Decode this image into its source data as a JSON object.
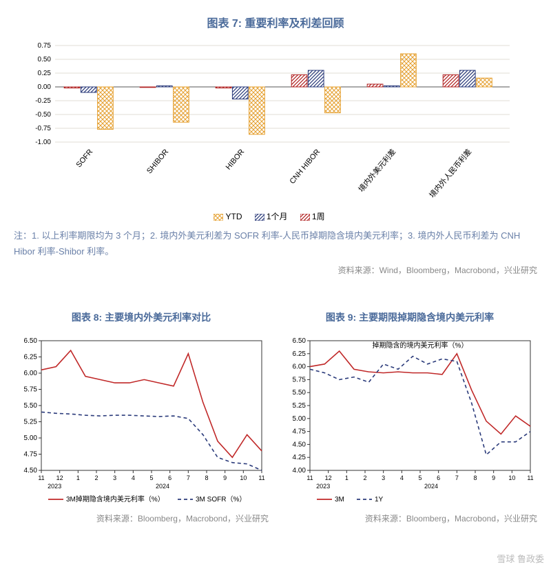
{
  "chart7": {
    "title": "图表 7: 重要利率及利差回顾",
    "type": "bar",
    "categories": [
      "SOFR",
      "SHIBOR",
      "HIBOR",
      "CNH HIBOR",
      "境内外美元利差",
      "境内外人民币利差"
    ],
    "series": [
      {
        "name": "YTD",
        "color": "#f0b84a",
        "values": [
          -0.77,
          -0.64,
          -0.86,
          -0.47,
          0.6,
          0.16
        ]
      },
      {
        "name": "1个月",
        "color": "#2a3a7a",
        "values": [
          -0.1,
          0.02,
          -0.22,
          0.3,
          0.02,
          0.3
        ]
      },
      {
        "name": "1周",
        "color": "#c02828",
        "values": [
          -0.02,
          -0.01,
          -0.02,
          0.22,
          0.05,
          0.22
        ]
      }
    ],
    "ylim": [
      -1.0,
      0.75
    ],
    "ytick_step": 0.25,
    "grid_color": "#d8d0c8",
    "axis_color": "#333",
    "title_fontsize": 16,
    "label_fontsize": 11,
    "pattern": "crosshatch",
    "bar_width": 0.22,
    "notes": "注：1. 以上利率期限均为 3 个月；2. 境内外美元利差为 SOFR 利率-人民币掉期隐含境内美元利率；3. 境内外人民币利差为 CNH Hibor 利率-Shibor 利率。",
    "source": "资料来源：Wind，Bloomberg，Macrobond，兴业研究"
  },
  "chart8": {
    "title": "图表 8: 主要境内外美元利率对比",
    "type": "line",
    "xlabels": [
      "11",
      "12",
      "1",
      "2",
      "3",
      "4",
      "5",
      "6",
      "7",
      "8",
      "9",
      "10",
      "11"
    ],
    "year_left": "2023",
    "year_right": "2024",
    "ylim": [
      4.5,
      6.5
    ],
    "ytick_step": 0.25,
    "series": [
      {
        "name": "3M掉期隐含境内美元利率（%）",
        "color": "#c02828",
        "dash": "solid",
        "y": [
          6.05,
          6.1,
          6.35,
          5.95,
          5.9,
          5.85,
          5.85,
          5.9,
          5.85,
          5.8,
          6.3,
          5.55,
          4.95,
          4.7,
          5.05,
          4.8
        ]
      },
      {
        "name": "3M SOFR（%）",
        "color": "#2a3a7a",
        "dash": "dash",
        "y": [
          5.4,
          5.38,
          5.37,
          5.35,
          5.34,
          5.35,
          5.35,
          5.34,
          5.33,
          5.34,
          5.3,
          5.05,
          4.7,
          4.62,
          4.6,
          4.5
        ]
      }
    ],
    "source": "资料来源：Bloomberg，Macrobond，兴业研究",
    "title_fontsize": 14,
    "label_fontsize": 10,
    "grid_color": "#d8d0c8"
  },
  "chart9": {
    "title": "图表 9: 主要期限掉期隐含境内美元利率",
    "type": "line",
    "subtitle": "掉期隐含的境内美元利率（%）",
    "xlabels": [
      "11",
      "12",
      "1",
      "2",
      "3",
      "4",
      "5",
      "6",
      "7",
      "8",
      "9",
      "10",
      "11"
    ],
    "year_left": "2023",
    "year_right": "2024",
    "ylim": [
      4.0,
      6.5
    ],
    "ytick_step": 0.25,
    "series": [
      {
        "name": "3M",
        "color": "#c02828",
        "dash": "solid",
        "y": [
          6.0,
          6.05,
          6.3,
          5.95,
          5.9,
          5.88,
          5.9,
          5.88,
          5.88,
          5.85,
          6.25,
          5.55,
          4.95,
          4.7,
          5.05,
          4.85
        ]
      },
      {
        "name": "1Y",
        "color": "#2a3a7a",
        "dash": "dash",
        "y": [
          5.95,
          5.88,
          5.75,
          5.8,
          5.7,
          6.05,
          5.95,
          6.2,
          6.05,
          6.15,
          6.1,
          5.3,
          4.3,
          4.55,
          4.55,
          4.75
        ]
      }
    ],
    "source": "资料来源：Bloomberg，Macrobond，兴业研究",
    "title_fontsize": 14,
    "label_fontsize": 10,
    "grid_color": "#d8d0c8"
  },
  "watermark": "雪球  鲁政委"
}
